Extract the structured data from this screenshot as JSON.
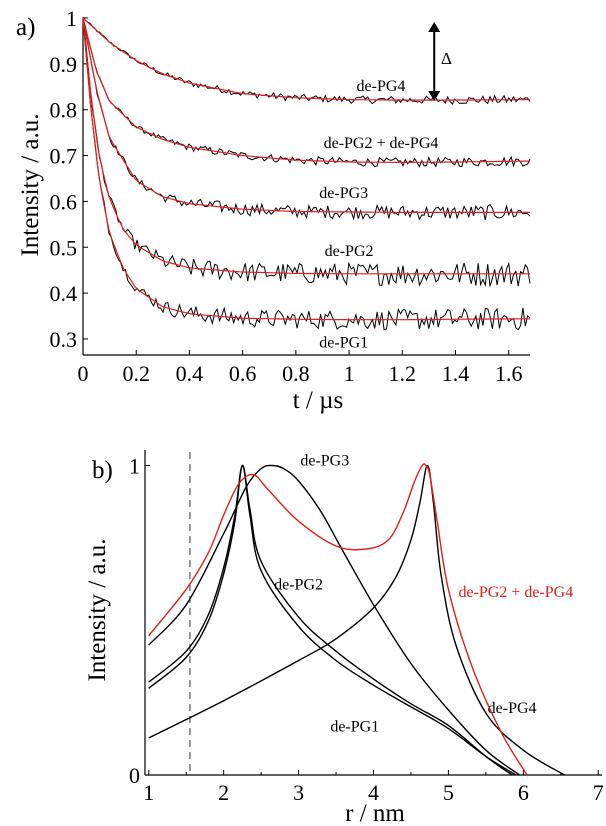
{
  "chart_data": [
    {
      "panel_label": "a)",
      "type": "line",
      "xlabel": "t / µs",
      "ylabel": "Intensity / a.u.",
      "xlim": [
        0,
        1.68
      ],
      "ylim": [
        0.265,
        1.0
      ],
      "xticks": [
        "0",
        "0.2",
        "0.4",
        "0.6",
        "0.8",
        "1",
        "1.2",
        "1.4",
        "1.6"
      ],
      "yticks": [
        "0.3",
        "0.4",
        "0.5",
        "0.6",
        "0.7",
        "0.8",
        "0.9",
        "1"
      ],
      "annotation": "Δ",
      "colors": {
        "data": "#000000",
        "fit": "#e0201b"
      },
      "series": [
        {
          "name": "de-PG4",
          "t": [
            0,
            0.1,
            0.2,
            0.3,
            0.4,
            0.6,
            0.8,
            1.0,
            1.2,
            1.4,
            1.68
          ],
          "fit": [
            1.0,
            0.947,
            0.907,
            0.878,
            0.858,
            0.835,
            0.826,
            0.822,
            0.821,
            0.821,
            0.822
          ],
          "noise": 0.006
        },
        {
          "name": "de-PG2 + de-PG4",
          "t": [
            0,
            0.05,
            0.1,
            0.2,
            0.3,
            0.4,
            0.6,
            0.8,
            1.0,
            1.2,
            1.4,
            1.68
          ],
          "fit": [
            1.0,
            0.885,
            0.818,
            0.762,
            0.735,
            0.718,
            0.7,
            0.69,
            0.686,
            0.685,
            0.686,
            0.688
          ],
          "noise": 0.007
        },
        {
          "name": "de-PG3",
          "t": [
            0,
            0.05,
            0.1,
            0.2,
            0.3,
            0.4,
            0.6,
            0.8,
            1.0,
            1.2,
            1.4,
            1.68
          ],
          "fit": [
            1.0,
            0.845,
            0.738,
            0.645,
            0.61,
            0.595,
            0.583,
            0.578,
            0.577,
            0.576,
            0.576,
            0.576
          ],
          "noise": 0.011
        },
        {
          "name": "de-PG2",
          "t": [
            0,
            0.03,
            0.06,
            0.1,
            0.15,
            0.2,
            0.3,
            0.4,
            0.6,
            0.8,
            1.0,
            1.2,
            1.4,
            1.68
          ],
          "fit": [
            1.0,
            0.83,
            0.7,
            0.605,
            0.54,
            0.505,
            0.47,
            0.455,
            0.446,
            0.443,
            0.442,
            0.442,
            0.442,
            0.442
          ],
          "noise": 0.018
        },
        {
          "name": "de-PG1",
          "t": [
            0,
            0.03,
            0.06,
            0.1,
            0.15,
            0.2,
            0.3,
            0.4,
            0.6,
            0.8,
            1.0,
            1.2,
            1.4,
            1.68
          ],
          "fit": [
            1.0,
            0.8,
            0.65,
            0.53,
            0.455,
            0.41,
            0.37,
            0.355,
            0.345,
            0.343,
            0.342,
            0.342,
            0.343,
            0.344
          ],
          "noise": 0.016
        }
      ]
    },
    {
      "panel_label": "b)",
      "type": "line",
      "xlabel": "r / nm",
      "ylabel": "Intensity / a.u.",
      "xlim": [
        0.95,
        7.05
      ],
      "ylim": [
        0,
        1.05
      ],
      "xticks": [
        "1",
        "2",
        "3",
        "4",
        "5",
        "6",
        "7"
      ],
      "yticks": [
        "0",
        "1"
      ],
      "dashed_line_x": 1.55,
      "colors": {
        "black": "#000000",
        "red": "#e0201b"
      },
      "series": [
        {
          "name": "de-PG1",
          "color": "#000000",
          "r": [
            1.0,
            1.5,
            1.8,
            2.0,
            2.15,
            2.25,
            2.35,
            2.5,
            3.0,
            3.5,
            4.0,
            4.5,
            5.0,
            5.5,
            5.9
          ],
          "y": [
            0.28,
            0.38,
            0.5,
            0.65,
            0.82,
            1.0,
            0.84,
            0.66,
            0.48,
            0.37,
            0.29,
            0.22,
            0.15,
            0.06,
            0.0
          ]
        },
        {
          "name": "de-PG2",
          "color": "#000000",
          "r": [
            1.0,
            1.5,
            1.8,
            2.0,
            2.15,
            2.25,
            2.35,
            2.5,
            3.0,
            3.5,
            4.0,
            4.5,
            5.0,
            5.5,
            5.85
          ],
          "y": [
            0.3,
            0.4,
            0.52,
            0.67,
            0.84,
            1.0,
            0.86,
            0.69,
            0.51,
            0.4,
            0.31,
            0.23,
            0.16,
            0.06,
            0.0
          ]
        },
        {
          "name": "de-PG3",
          "color": "#000000",
          "r": [
            1.0,
            1.5,
            2.0,
            2.3,
            2.5,
            2.65,
            2.8,
            3.0,
            3.3,
            3.6,
            4.0,
            4.5,
            5.0,
            5.5,
            5.95
          ],
          "y": [
            0.42,
            0.55,
            0.78,
            0.93,
            0.99,
            1.0,
            0.99,
            0.95,
            0.85,
            0.72,
            0.55,
            0.36,
            0.21,
            0.08,
            0.0
          ]
        },
        {
          "name": "de-PG4",
          "color": "#000000",
          "r": [
            1.0,
            2.0,
            3.0,
            3.5,
            4.0,
            4.3,
            4.5,
            4.62,
            4.72,
            4.8,
            4.9,
            5.1,
            5.5,
            6.0,
            6.55
          ],
          "y": [
            0.12,
            0.24,
            0.37,
            0.44,
            0.54,
            0.64,
            0.76,
            0.88,
            1.0,
            0.88,
            0.65,
            0.42,
            0.2,
            0.08,
            0.0
          ]
        },
        {
          "name": "de-PG2 + de-PG4",
          "color": "#e0201b",
          "r": [
            1.0,
            1.5,
            1.8,
            2.0,
            2.2,
            2.4,
            2.6,
            3.0,
            3.5,
            3.9,
            4.2,
            4.4,
            4.55,
            4.65,
            4.7,
            4.75,
            4.85,
            5.0,
            5.3,
            5.7,
            6.05
          ],
          "y": [
            0.45,
            0.6,
            0.72,
            0.84,
            0.94,
            0.97,
            0.92,
            0.82,
            0.74,
            0.73,
            0.76,
            0.85,
            0.95,
            1.0,
            1.0,
            0.97,
            0.82,
            0.6,
            0.36,
            0.14,
            0.0
          ]
        }
      ]
    }
  ]
}
